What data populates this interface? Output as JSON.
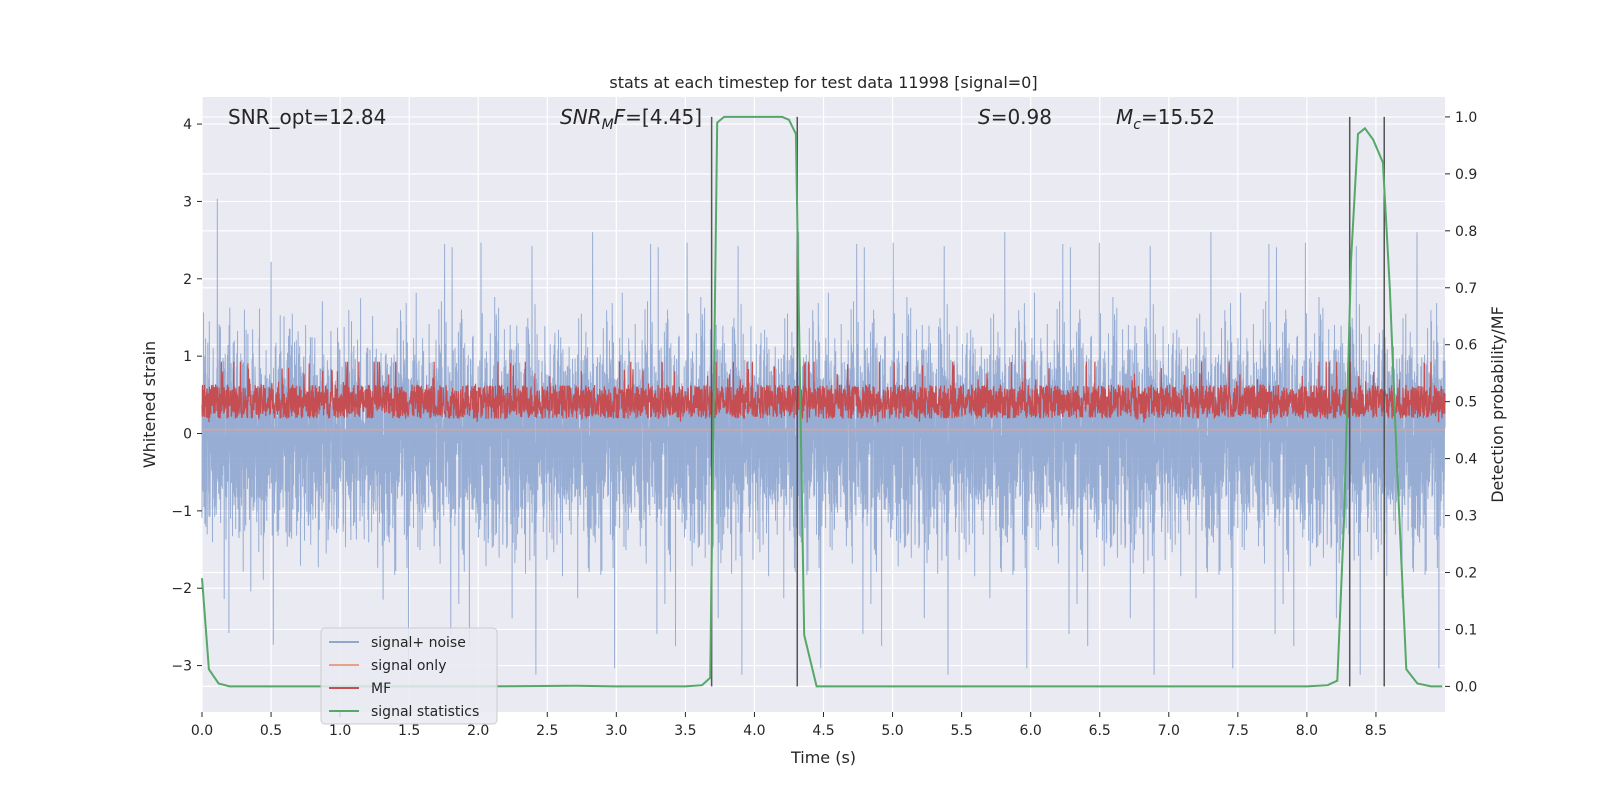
{
  "chart_data": {
    "type": "line",
    "title": "stats at each timestep for test data 11998 [signal=0]",
    "xlabel": "Time (s)",
    "ylabel": "Whitened strain",
    "y2label": "Detection probability/MF",
    "xlim": [
      0.0,
      9.0
    ],
    "ylim": [
      -3.6,
      4.35
    ],
    "y2lim": [
      -0.045,
      1.035
    ],
    "grid": true,
    "legend_position": "lower-left",
    "xticks": [
      "0.0",
      "0.5",
      "1.0",
      "1.5",
      "2.0",
      "2.5",
      "3.0",
      "3.5",
      "4.0",
      "4.5",
      "5.0",
      "5.5",
      "6.0",
      "6.5",
      "7.0",
      "7.5",
      "8.0",
      "8.5"
    ],
    "yticks": [
      "−3",
      "−2",
      "−1",
      "0",
      "1",
      "2",
      "3",
      "4"
    ],
    "y2ticks": [
      "0.0",
      "0.1",
      "0.2",
      "0.3",
      "0.4",
      "0.5",
      "0.6",
      "0.7",
      "0.8",
      "0.9",
      "1.0"
    ],
    "annotations": {
      "snr_opt": "SNR_opt=12.84",
      "snr_mf_prefix": "SNR",
      "snr_mf_sub": "M",
      "snr_mf_mid": "F",
      "snr_mf_value": "=[4.45]",
      "s_sym": "S",
      "s_value": "=0.98",
      "mc_sym": "M",
      "mc_sub": "c",
      "mc_value": "=15.52"
    },
    "detection_markers_x": [
      3.69,
      4.31,
      8.31,
      8.56
    ],
    "series": [
      {
        "name": "signal+ noise",
        "color": "#8fa6cf",
        "style": "dense noise",
        "peak_range": [
          -3.3,
          3.3
        ]
      },
      {
        "name": "signal only",
        "color": "#e8a087",
        "values": "flat near 0"
      },
      {
        "name": "MF",
        "color": "#c44e52",
        "style": "dense noise on y2",
        "range_y2": [
          0.45,
          0.57
        ]
      },
      {
        "name": "signal statistics",
        "color": "#55a868",
        "x": [
          0.0,
          0.05,
          0.12,
          0.2,
          0.3,
          1.0,
          2.0,
          2.7,
          3.0,
          3.5,
          3.62,
          3.68,
          3.73,
          3.78,
          3.85,
          4.2,
          4.25,
          4.3,
          4.36,
          4.45,
          5.0,
          6.0,
          7.0,
          8.0,
          8.15,
          8.22,
          8.27,
          8.32,
          8.37,
          8.42,
          8.48,
          8.55,
          8.6,
          8.65,
          8.72,
          8.8,
          8.9,
          8.98
        ],
        "values": [
          0.19,
          0.03,
          0.005,
          0.0,
          0.0,
          0.0,
          0.0,
          0.001,
          0.0,
          0.0,
          0.002,
          0.015,
          0.99,
          1.0,
          1.0,
          1.0,
          0.995,
          0.97,
          0.09,
          0.0,
          0.0,
          0.0,
          0.0,
          0.0,
          0.002,
          0.01,
          0.3,
          0.75,
          0.97,
          0.98,
          0.96,
          0.92,
          0.7,
          0.4,
          0.03,
          0.005,
          0.0,
          0.0
        ]
      }
    ]
  }
}
